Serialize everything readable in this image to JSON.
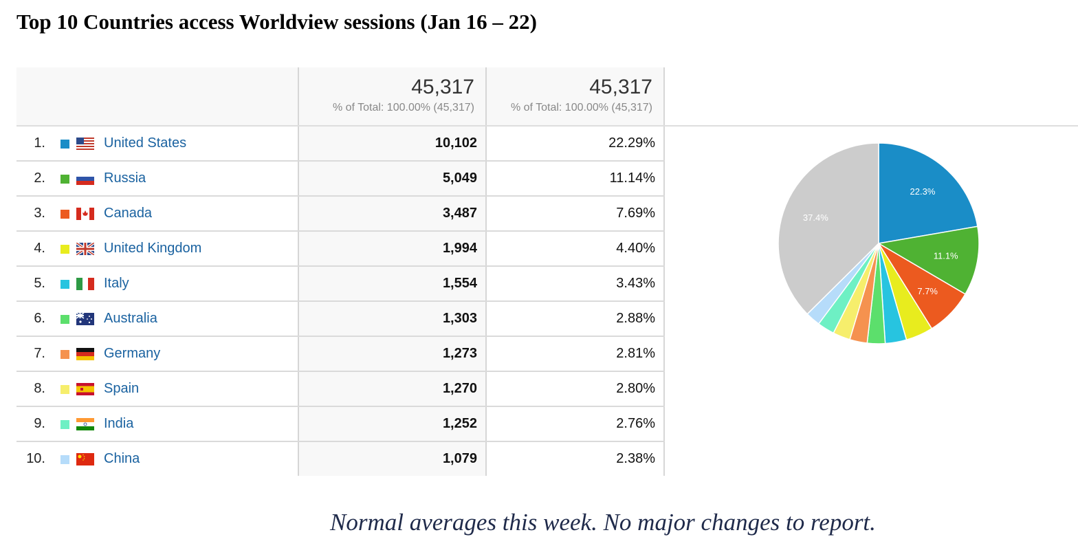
{
  "title": "Top 10 Countries access Worldview sessions (Jan 16 – 22)",
  "header": {
    "col1_total": "45,317",
    "col1_sub": "% of Total: 100.00% (45,317)",
    "col2_total": "45,317",
    "col2_sub": "% of Total: 100.00% (45,317)"
  },
  "rows": [
    {
      "rank": "1.",
      "country": "United States",
      "sessions": "10,102",
      "percent": "22.29%",
      "color": "#1a8dc7",
      "flag": "us-flag-icon"
    },
    {
      "rank": "2.",
      "country": "Russia",
      "sessions": "5,049",
      "percent": "11.14%",
      "color": "#4fb233",
      "flag": "russia-flag-icon"
    },
    {
      "rank": "3.",
      "country": "Canada",
      "sessions": "3,487",
      "percent": "7.69%",
      "color": "#ec5a1f",
      "flag": "canada-flag-icon"
    },
    {
      "rank": "4.",
      "country": "United Kingdom",
      "sessions": "1,994",
      "percent": "4.40%",
      "color": "#e8ec1e",
      "flag": "uk-flag-icon"
    },
    {
      "rank": "5.",
      "country": "Italy",
      "sessions": "1,554",
      "percent": "3.43%",
      "color": "#27c4e0",
      "flag": "italy-flag-icon"
    },
    {
      "rank": "6.",
      "country": "Australia",
      "sessions": "1,303",
      "percent": "2.88%",
      "color": "#5cdf6c",
      "flag": "australia-flag-icon"
    },
    {
      "rank": "7.",
      "country": "Germany",
      "sessions": "1,273",
      "percent": "2.81%",
      "color": "#f5924f",
      "flag": "germany-flag-icon"
    },
    {
      "rank": "8.",
      "country": "Spain",
      "sessions": "1,270",
      "percent": "2.80%",
      "color": "#f6ee6c",
      "flag": "spain-flag-icon"
    },
    {
      "rank": "9.",
      "country": "India",
      "sessions": "1,252",
      "percent": "2.76%",
      "color": "#6ef0c4",
      "flag": "india-flag-icon"
    },
    {
      "rank": "10.",
      "country": "China",
      "sessions": "1,079",
      "percent": "2.38%",
      "color": "#b6dcfa",
      "flag": "china-flag-icon"
    }
  ],
  "chart_data": {
    "type": "pie",
    "categories": [
      "United States",
      "Russia",
      "Canada",
      "United Kingdom",
      "Italy",
      "Australia",
      "Germany",
      "Spain",
      "India",
      "China",
      "Other"
    ],
    "values": [
      22.29,
      11.14,
      7.69,
      4.4,
      3.43,
      2.88,
      2.81,
      2.8,
      2.76,
      2.38,
      37.42
    ],
    "colors": [
      "#1a8dc7",
      "#4fb233",
      "#ec5a1f",
      "#e8ec1e",
      "#27c4e0",
      "#5cdf6c",
      "#f5924f",
      "#f6ee6c",
      "#6ef0c4",
      "#b6dcfa",
      "#cccccc"
    ],
    "slice_labels": [
      "22.3%",
      "11.1%",
      "7.7%",
      "",
      "",
      "",
      "",
      "",
      "",
      "",
      "37.4%"
    ]
  },
  "note": "Normal averages this week.  No major changes to report."
}
